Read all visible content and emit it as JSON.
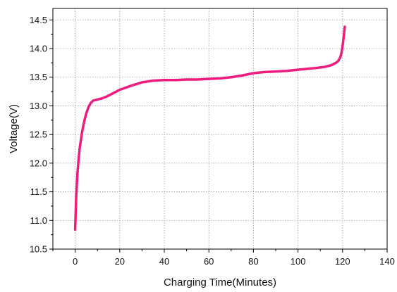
{
  "chart_data": {
    "type": "line",
    "title": "",
    "xlabel": "Charging Time(Minutes)",
    "ylabel": "Voltage(V)",
    "xlim": [
      -10,
      140
    ],
    "ylim": [
      10.5,
      14.7
    ],
    "x_ticks": [
      0,
      20,
      40,
      60,
      80,
      100,
      120,
      140
    ],
    "x_tick_labels": [
      "0",
      "20",
      "40",
      "60",
      "80",
      "100",
      "120",
      "140"
    ],
    "y_ticks": [
      10.5,
      11.0,
      11.5,
      12.0,
      12.5,
      13.0,
      13.5,
      14.0,
      14.5
    ],
    "y_tick_labels": [
      "10.5",
      "11.0",
      "11.5",
      "12.0",
      "12.5",
      "13.0",
      "13.5",
      "14.0",
      "14.5"
    ],
    "grid": true,
    "legend": "none",
    "series": [
      {
        "color": "#ee1c7f",
        "x": [
          0,
          0.2,
          0.5,
          1,
          1.5,
          2,
          3,
          4,
          5,
          6,
          7,
          8,
          9,
          10,
          12,
          14,
          16,
          18,
          20,
          25,
          30,
          35,
          40,
          45,
          50,
          55,
          60,
          65,
          70,
          75,
          80,
          85,
          90,
          95,
          100,
          105,
          108,
          110,
          112,
          114,
          115,
          116,
          117,
          118,
          119,
          119.5,
          120,
          120.5,
          121
        ],
        "y": [
          10.84,
          11.1,
          11.45,
          11.8,
          12.05,
          12.25,
          12.52,
          12.72,
          12.87,
          12.98,
          13.05,
          13.09,
          13.1,
          13.11,
          13.13,
          13.16,
          13.2,
          13.24,
          13.28,
          13.35,
          13.41,
          13.44,
          13.45,
          13.45,
          13.46,
          13.46,
          13.47,
          13.48,
          13.5,
          13.53,
          13.57,
          13.59,
          13.6,
          13.61,
          13.63,
          13.65,
          13.66,
          13.67,
          13.68,
          13.7,
          13.71,
          13.73,
          13.75,
          13.78,
          13.85,
          13.92,
          14.04,
          14.2,
          14.38
        ]
      }
    ]
  }
}
